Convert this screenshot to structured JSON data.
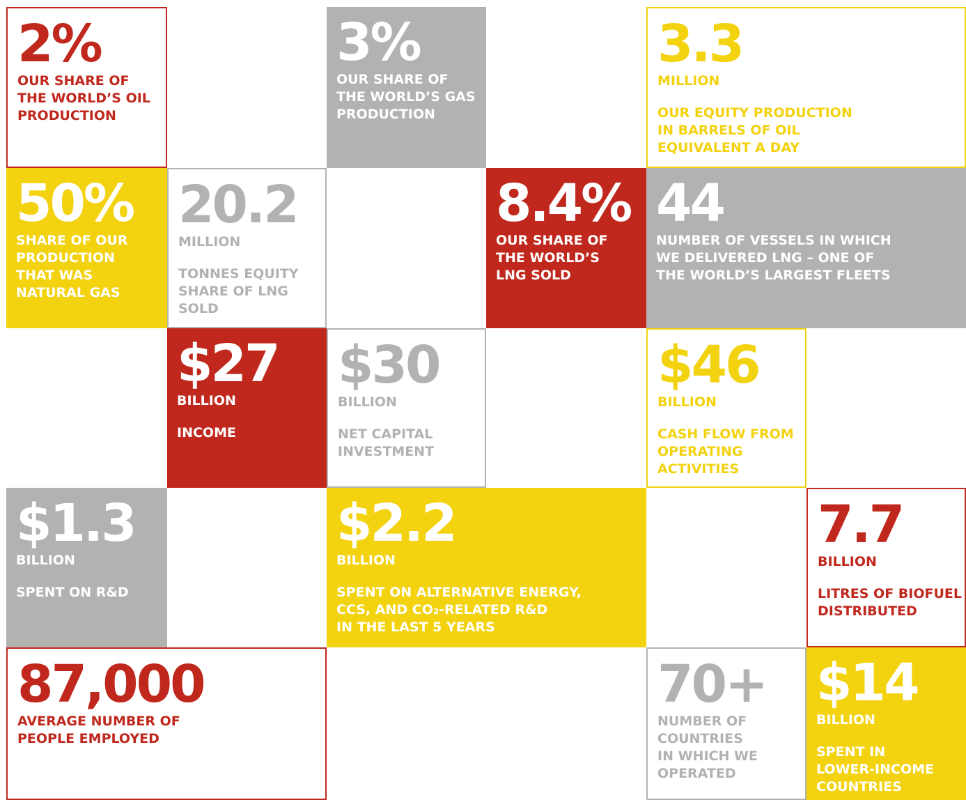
{
  "tiles": [
    {
      "figure": "2%",
      "lines": [
        "OUR SHARE OF",
        "THE WORLD’S OIL",
        "PRODUCTION"
      ],
      "color": "#c0281d",
      "filled": false
    },
    {
      "figure": "3%",
      "lines": [
        "OUR SHARE OF",
        "THE WORLD’S GAS",
        "PRODUCTION"
      ],
      "color": "#b2b2b1",
      "filled": true
    },
    {
      "figure": "3.3",
      "unit": "MILLION",
      "lines": [
        "OUR EQUITY PRODUCTION",
        "IN BARRELS OF OIL",
        "EQUIVALENT A DAY"
      ],
      "color": "#f3d20f",
      "filled": false
    },
    {
      "figure": "50%",
      "lines": [
        "SHARE OF OUR",
        "PRODUCTION",
        "THAT WAS",
        "NATURAL GAS"
      ],
      "color": "#f3d20f",
      "filled": true
    },
    {
      "figure": "20.2",
      "unit": "MILLION",
      "lines": [
        "TONNES EQUITY",
        "SHARE OF LNG",
        "SOLD"
      ],
      "color": "#b2b2b1",
      "filled": false
    },
    {
      "figure": "8.4%",
      "lines": [
        "OUR SHARE OF",
        "THE WORLD’S",
        "LNG SOLD"
      ],
      "color": "#c0281d",
      "filled": true
    },
    {
      "figure": "44",
      "lines": [
        "NUMBER OF VESSELS IN WHICH",
        "WE DELIVERED LNG – ONE OF",
        "THE WORLD’S LARGEST FLEETS"
      ],
      "color": "#b2b2b1",
      "filled": true
    },
    {
      "figure": "$27",
      "unit": "BILLION",
      "lines": [
        "INCOME"
      ],
      "color": "#c0281d",
      "filled": true
    },
    {
      "figure": "$30",
      "unit": "BILLION",
      "lines": [
        "NET CAPITAL",
        "INVESTMENT"
      ],
      "color": "#b2b2b1",
      "filled": false
    },
    {
      "figure": "$46",
      "unit": "BILLION",
      "lines": [
        "CASH FLOW FROM",
        "OPERATING",
        "ACTIVITIES"
      ],
      "color": "#f3d20f",
      "filled": false
    },
    {
      "figure": "$1.3",
      "unit": "BILLION",
      "lines": [
        "SPENT ON R&D"
      ],
      "color": "#b2b2b1",
      "filled": true
    },
    {
      "figure": "$2.2",
      "unit": "BILLION",
      "lines": [
        "SPENT ON ALTERNATIVE ENERGY,",
        "CCS, AND CO₂-RELATED R&D",
        "IN THE LAST 5 YEARS"
      ],
      "color": "#f3d20f",
      "filled": true
    },
    {
      "figure": "7.7",
      "unit": "BILLION",
      "lines": [
        "LITRES OF BIOFUEL",
        "DISTRIBUTED"
      ],
      "color": "#c0281d",
      "filled": false
    },
    {
      "figure": "87,000",
      "lines": [
        "AVERAGE NUMBER OF",
        "PEOPLE EMPLOYED"
      ],
      "color": "#c0281d",
      "filled": false
    },
    {
      "figure": "70+",
      "lines": [
        "NUMBER OF",
        "COUNTRIES",
        "IN WHICH WE",
        "OPERATED"
      ],
      "color": "#b2b2b1",
      "filled": false
    },
    {
      "figure": "$14",
      "unit": "BILLION",
      "lines": [
        "SPENT IN",
        "LOWER-INCOME",
        "COUNTRIES"
      ],
      "color": "#f3d20f",
      "filled": true
    }
  ]
}
